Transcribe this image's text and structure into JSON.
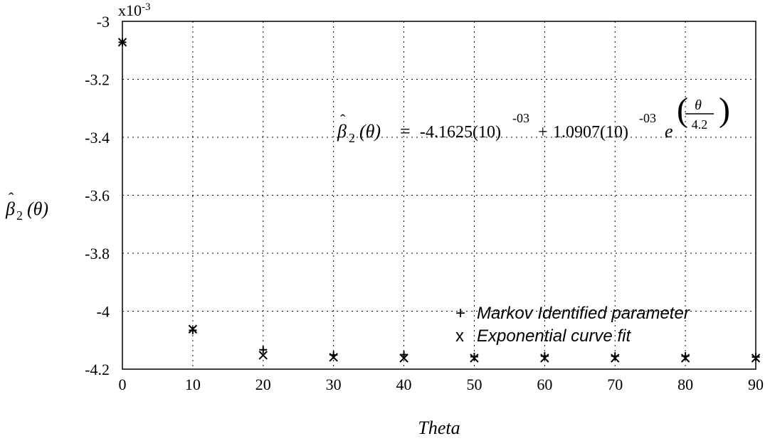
{
  "chart_data": {
    "type": "scatter",
    "title": "",
    "xlabel": "Theta",
    "ylabel_base": "β",
    "ylabel_sub": "2",
    "ylabel_arg": "(θ)",
    "xlim": [
      0,
      90
    ],
    "ylim": [
      -4.2,
      -3.0
    ],
    "y_scale_note": "x10",
    "y_scale_exp": "-3",
    "grid": true,
    "legend_position": "bottom-right",
    "x_ticks": [
      0,
      10,
      20,
      30,
      40,
      50,
      60,
      70,
      80,
      90
    ],
    "x_tick_labels": [
      "0",
      "10",
      "20",
      "30",
      "40",
      "50",
      "60",
      "70",
      "80",
      "90"
    ],
    "y_ticks": [
      -3.0,
      -3.2,
      -3.4,
      -3.6,
      -3.8,
      -4.0,
      -4.2
    ],
    "y_tick_labels": [
      "-3",
      "-3.2",
      "-3.4",
      "-3.6",
      "-3.8",
      "-4",
      "-4.2"
    ],
    "series": [
      {
        "name": "Markov Identified parameter",
        "marker": "+",
        "x": [
          0,
          10,
          20,
          30,
          40,
          50,
          60,
          70,
          80,
          90
        ],
        "y": [
          -3.072,
          -4.066,
          -4.133,
          -4.151,
          -4.15,
          -4.157,
          -4.155,
          -4.155,
          -4.155,
          -4.158
        ]
      },
      {
        "name": "Exponential curve fit",
        "marker": "x",
        "x": [
          0,
          10,
          20,
          30,
          40,
          50,
          60,
          70,
          80,
          90
        ],
        "y": [
          -3.072,
          -4.062,
          -4.152,
          -4.159,
          -4.162,
          -4.162,
          -4.162,
          -4.162,
          -4.162,
          -4.162
        ]
      }
    ],
    "annotation": {
      "lhs_base": "β",
      "lhs_sub": "2",
      "lhs_arg": "(θ)",
      "eq_sign": "=",
      "term1": "-4.1625(10)",
      "term1_exp": "-03",
      "plus": "+",
      "term2": "1.0907(10)",
      "term2_exp": "-03",
      "e": "e",
      "exp_num": "θ",
      "exp_den": "4.2"
    }
  }
}
